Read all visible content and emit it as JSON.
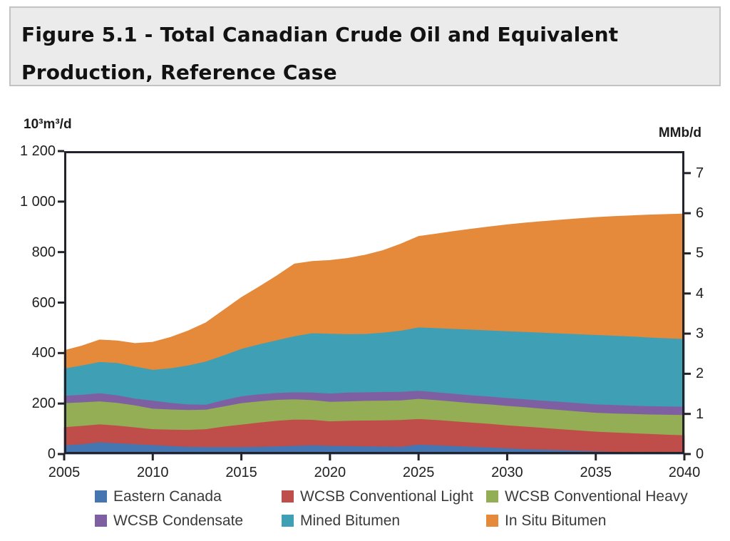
{
  "title": {
    "line1": "Figure 5.1 - Total Canadian Crude Oil and Equivalent",
    "line2": "Production, Reference Case"
  },
  "chart_data": {
    "type": "area",
    "stacked": true,
    "title": "Total Canadian Crude Oil and Equivalent Production, Reference Case",
    "xlabel": "",
    "ylabel_left": "10³m³/d",
    "ylabel_right": "MMb/d",
    "ylim_left": [
      0,
      1200
    ],
    "ylim_right": [
      0,
      7
    ],
    "units_per_mmbd": 158.99,
    "grid": false,
    "legend_position": "bottom",
    "x": [
      2005,
      2006,
      2007,
      2008,
      2009,
      2010,
      2011,
      2012,
      2013,
      2014,
      2015,
      2016,
      2017,
      2018,
      2019,
      2020,
      2021,
      2022,
      2023,
      2024,
      2025,
      2026,
      2027,
      2028,
      2029,
      2030,
      2031,
      2032,
      2033,
      2034,
      2035,
      2036,
      2037,
      2038,
      2039,
      2040
    ],
    "axis_left": {
      "unit": "10³m³/d",
      "ticks": [
        {
          "label": "0",
          "value": 0
        },
        {
          "label": "200",
          "value": 200
        },
        {
          "label": "400",
          "value": 400
        },
        {
          "label": "600",
          "value": 600
        },
        {
          "label": "800",
          "value": 800
        },
        {
          "label": "1 000",
          "value": 1000
        },
        {
          "label": "1 200",
          "value": 1200
        }
      ]
    },
    "axis_right": {
      "unit": "MMb/d",
      "ticks": [
        {
          "label": "0",
          "value": 0
        },
        {
          "label": "1",
          "value": 1
        },
        {
          "label": "2",
          "value": 2
        },
        {
          "label": "3",
          "value": 3
        },
        {
          "label": "4",
          "value": 4
        },
        {
          "label": "5",
          "value": 5
        },
        {
          "label": "6",
          "value": 6
        },
        {
          "label": "7",
          "value": 7
        }
      ]
    },
    "x_ticks": [
      2005,
      2010,
      2015,
      2020,
      2025,
      2030,
      2035,
      2040
    ],
    "series": [
      {
        "name": "Eastern Canada",
        "color": "#4576b2",
        "values": [
          36,
          40,
          48,
          44,
          40,
          37,
          33,
          30,
          29,
          29,
          29,
          30,
          32,
          34,
          36,
          34,
          33,
          32,
          31,
          30,
          39,
          36,
          33,
          30,
          27,
          24,
          21,
          19,
          17,
          14,
          12,
          10,
          9,
          8,
          7,
          6
        ]
      },
      {
        "name": "WCSB Conventional Light",
        "color": "#bf4d49",
        "values": [
          72,
          73,
          71,
          70,
          67,
          63,
          65,
          67,
          71,
          81,
          89,
          96,
          101,
          104,
          101,
          97,
          100,
          102,
          104,
          106,
          101,
          100,
          98,
          96,
          94,
          91,
          89,
          86,
          83,
          81,
          78,
          77,
          75,
          73,
          71,
          70
        ]
      },
      {
        "name": "WCSB Conventional Heavy",
        "color": "#94ae55",
        "values": [
          95,
          93,
          91,
          90,
          87,
          81,
          80,
          79,
          77,
          80,
          85,
          84,
          83,
          80,
          78,
          77,
          77,
          78,
          78,
          78,
          80,
          79,
          78,
          77,
          77,
          77,
          77,
          76,
          76,
          75,
          75,
          75,
          76,
          77,
          79,
          80
        ]
      },
      {
        "name": "WCSB Condensate",
        "color": "#7e60a2",
        "values": [
          29,
          30,
          32,
          30,
          27,
          32,
          26,
          22,
          20,
          25,
          27,
          28,
          27,
          28,
          30,
          33,
          35,
          34,
          34,
          34,
          32,
          31,
          31,
          31,
          31,
          31,
          31,
          32,
          32,
          33,
          33,
          34,
          33,
          33,
          33,
          33
        ]
      },
      {
        "name": "Mined Bitumen",
        "color": "#3e9fb5",
        "values": [
          108,
          116,
          124,
          128,
          127,
          122,
          137,
          154,
          171,
          177,
          188,
          198,
          209,
          222,
          235,
          237,
          231,
          231,
          235,
          242,
          251,
          254,
          257,
          260,
          262,
          265,
          267,
          269,
          271,
          273,
          275,
          274,
          274,
          272,
          270,
          268
        ]
      },
      {
        "name": "In Situ Bitumen",
        "color": "#e5893b",
        "values": [
          70,
          76,
          86,
          86,
          90,
          108,
          121,
          136,
          152,
          178,
          202,
          226,
          254,
          285,
          283,
          289,
          299,
          311,
          324,
          342,
          359,
          372,
          385,
          397,
          409,
          420,
          430,
          439,
          448,
          456,
          464,
          471,
          477,
          484,
          489,
          494
        ]
      }
    ]
  },
  "legend": {
    "items": [
      {
        "label": "Eastern Canada",
        "color": "#4576b2"
      },
      {
        "label": "WCSB Conventional Light",
        "color": "#bf4d49"
      },
      {
        "label": "WCSB Conventional Heavy",
        "color": "#94ae55"
      },
      {
        "label": "WCSB Condensate",
        "color": "#7e60a2"
      },
      {
        "label": "Mined Bitumen",
        "color": "#3e9fb5"
      },
      {
        "label": "In Situ Bitumen",
        "color": "#e5893b"
      }
    ]
  },
  "style": {
    "axis_color": "#23232c",
    "title_bg": "#ebebeb",
    "title_border": "#c3c3c3"
  }
}
